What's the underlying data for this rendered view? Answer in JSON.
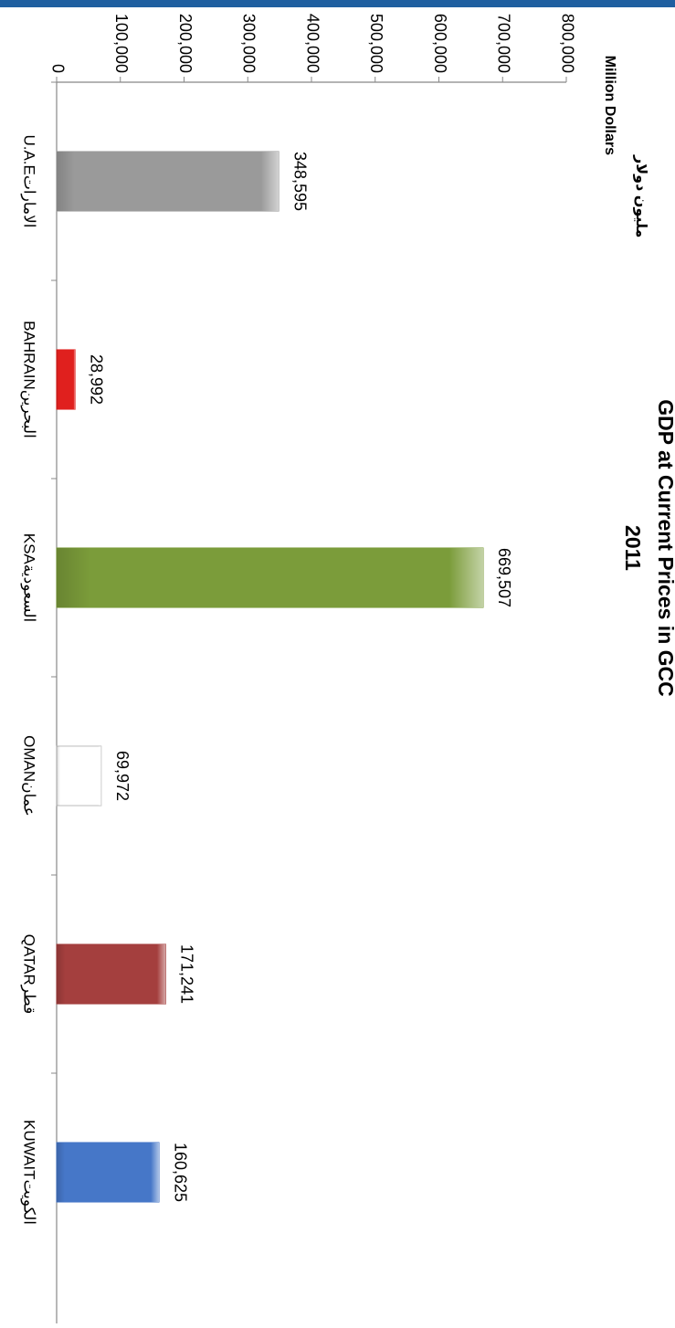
{
  "chart_data": {
    "type": "bar",
    "title": "GDP at Current Prices in GCC",
    "subtitle": "2011",
    "y_label": "Million Dollars",
    "y_label_ar": "مليون دولار",
    "categories": [
      "U.A.Eالامارات",
      "BAHRAINالبحرين",
      "KSAالسعودية",
      "OMANعمان",
      "QATARقطر",
      "KUWAITالكويت"
    ],
    "values": [
      348595,
      28992,
      669507,
      69972,
      171241,
      160625
    ],
    "value_labels": [
      "348,595",
      "28,992",
      "669,507",
      "69,972",
      "171,241",
      "160,625"
    ],
    "colors": [
      "#9a9a9a",
      "#e0201e",
      "#7b9c3a",
      "#ffffff",
      "#a43f3e",
      "#4677c8"
    ],
    "ylim": [
      0,
      800000
    ],
    "yticks": [
      0,
      {
        "value": 100000,
        "label": "100,000"
      },
      {
        "value": 200000,
        "label": "200,000"
      },
      {
        "value": 300000,
        "label": "300,000"
      },
      {
        "value": 400000,
        "label": "400,000"
      },
      {
        "value": 500000,
        "label": "500,000"
      },
      {
        "value": 600000,
        "label": "600,000"
      },
      {
        "value": 700000,
        "label": "700,000"
      },
      {
        "value": 800000,
        "label": "800,000"
      }
    ],
    "grid": false
  }
}
